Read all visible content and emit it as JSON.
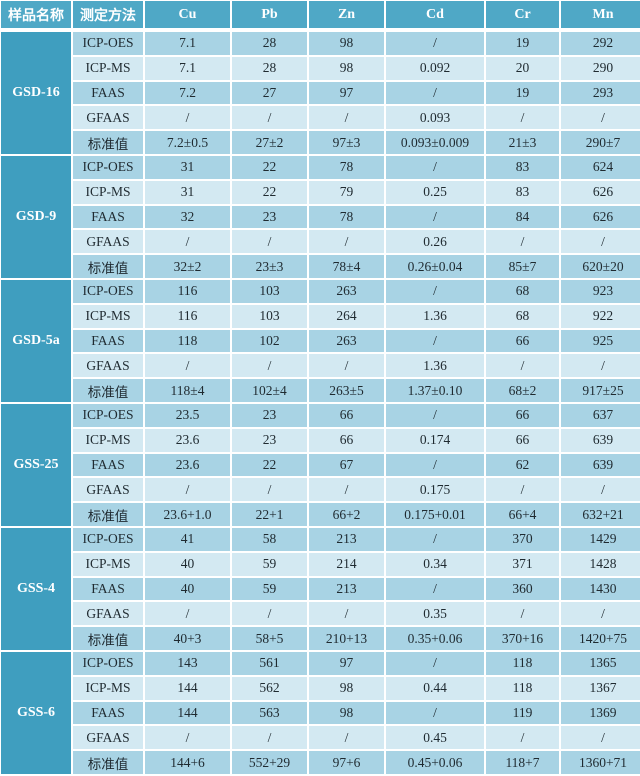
{
  "colors": {
    "header": "#4fa8c6",
    "sample_column": "#3f9ebf",
    "row_dark": "#a8d3e4",
    "row_light": "#d3e9f2"
  },
  "headers": [
    "样品名称",
    "测定方法",
    "Cu",
    "Pb",
    "Zn",
    "Cd",
    "Cr",
    "Mn"
  ],
  "groups": [
    {
      "sample": "GSD-16",
      "rows": [
        [
          "ICP-OES",
          "7.1",
          "28",
          "98",
          "/",
          "19",
          "292"
        ],
        [
          "ICP-MS",
          "7.1",
          "28",
          "98",
          "0.092",
          "20",
          "290"
        ],
        [
          "FAAS",
          "7.2",
          "27",
          "97",
          "/",
          "19",
          "293"
        ],
        [
          "GFAAS",
          "/",
          "/",
          "/",
          "0.093",
          "/",
          "/"
        ],
        [
          "标准值",
          "7.2±0.5",
          "27±2",
          "97±3",
          "0.093±0.009",
          "21±3",
          "290±7"
        ]
      ]
    },
    {
      "sample": "GSD-9",
      "rows": [
        [
          "ICP-OES",
          "31",
          "22",
          "78",
          "/",
          "83",
          "624"
        ],
        [
          "ICP-MS",
          "31",
          "22",
          "79",
          "0.25",
          "83",
          "626"
        ],
        [
          "FAAS",
          "32",
          "23",
          "78",
          "/",
          "84",
          "626"
        ],
        [
          "GFAAS",
          "/",
          "/",
          "/",
          "0.26",
          "/",
          "/"
        ],
        [
          "标准值",
          "32±2",
          "23±3",
          "78±4",
          "0.26±0.04",
          "85±7",
          "620±20"
        ]
      ]
    },
    {
      "sample": "GSD-5a",
      "rows": [
        [
          "ICP-OES",
          "116",
          "103",
          "263",
          "/",
          "68",
          "923"
        ],
        [
          "ICP-MS",
          "116",
          "103",
          "264",
          "1.36",
          "68",
          "922"
        ],
        [
          "FAAS",
          "118",
          "102",
          "263",
          "/",
          "66",
          "925"
        ],
        [
          "GFAAS",
          "/",
          "/",
          "/",
          "1.36",
          "/",
          "/"
        ],
        [
          "标准值",
          "118±4",
          "102±4",
          "263±5",
          "1.37±0.10",
          "68±2",
          "917±25"
        ]
      ]
    },
    {
      "sample": "GSS-25",
      "rows": [
        [
          "ICP-OES",
          "23.5",
          "23",
          "66",
          "/",
          "66",
          "637"
        ],
        [
          "ICP-MS",
          "23.6",
          "23",
          "66",
          "0.174",
          "66",
          "639"
        ],
        [
          "FAAS",
          "23.6",
          "22",
          "67",
          "/",
          "62",
          "639"
        ],
        [
          "GFAAS",
          "/",
          "/",
          "/",
          "0.175",
          "/",
          "/"
        ],
        [
          "标准值",
          "23.6+1.0",
          "22+1",
          "66+2",
          "0.175+0.01",
          "66+4",
          "632+21"
        ]
      ]
    },
    {
      "sample": "GSS-4",
      "rows": [
        [
          "ICP-OES",
          "41",
          "58",
          "213",
          "/",
          "370",
          "1429"
        ],
        [
          "ICP-MS",
          "40",
          "59",
          "214",
          "0.34",
          "371",
          "1428"
        ],
        [
          "FAAS",
          "40",
          "59",
          "213",
          "/",
          "360",
          "1430"
        ],
        [
          "GFAAS",
          "/",
          "/",
          "/",
          "0.35",
          "/",
          "/"
        ],
        [
          "标准值",
          "40+3",
          "58+5",
          "210+13",
          "0.35+0.06",
          "370+16",
          "1420+75"
        ]
      ]
    },
    {
      "sample": "GSS-6",
      "rows": [
        [
          "ICP-OES",
          "143",
          "561",
          "97",
          "/",
          "118",
          "1365"
        ],
        [
          "ICP-MS",
          "144",
          "562",
          "98",
          "0.44",
          "118",
          "1367"
        ],
        [
          "FAAS",
          "144",
          "563",
          "98",
          "/",
          "119",
          "1369"
        ],
        [
          "GFAAS",
          "/",
          "/",
          "/",
          "0.45",
          "/",
          "/"
        ],
        [
          "标准值",
          "144+6",
          "552+29",
          "97+6",
          "0.45+0.06",
          "118+7",
          "1360+71"
        ]
      ]
    }
  ]
}
